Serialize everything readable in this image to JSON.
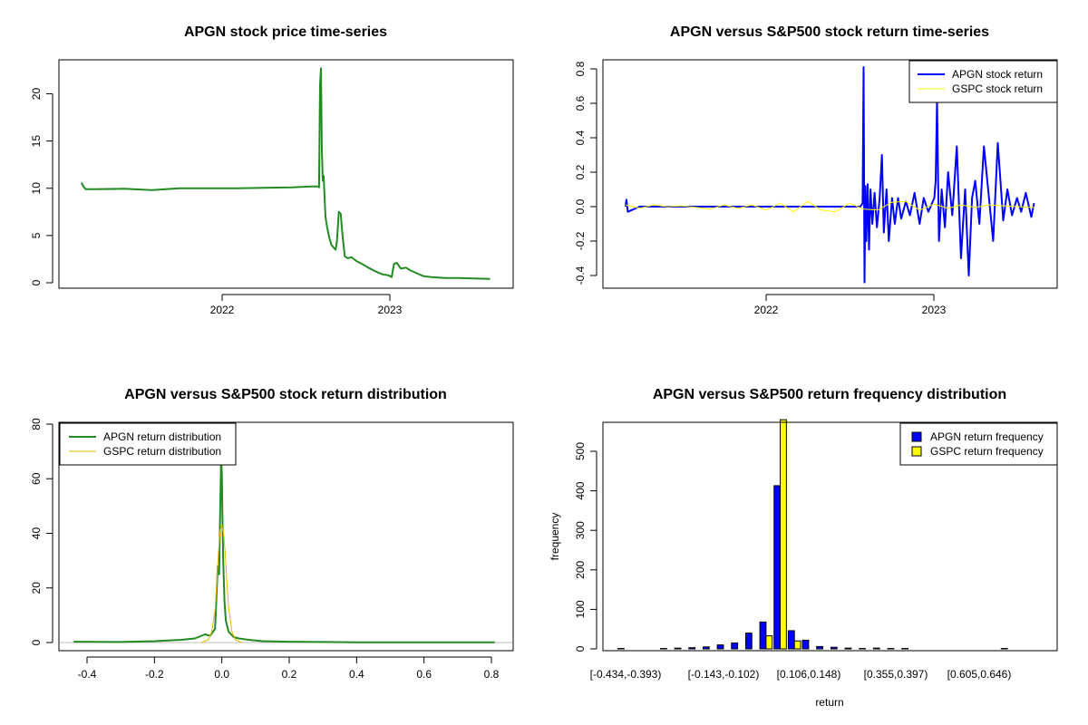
{
  "chart_data": [
    {
      "type": "line",
      "title": "APGN stock price time-series",
      "xlabel": "",
      "ylabel": "",
      "x_tick_labels": [
        "2022",
        "2023"
      ],
      "y_ticks": [
        0,
        5,
        10,
        15,
        20
      ],
      "ylim": [
        0,
        23
      ],
      "grid": false,
      "color": "#228B22",
      "series": [
        {
          "x": [
            "2021-03-01",
            "2021-03-05",
            "2021-03-10",
            "2021-04-01",
            "2021-06-01",
            "2021-08-01",
            "2021-10-01",
            "2021-12-01",
            "2022-02-01",
            "2022-04-01",
            "2022-06-01",
            "2022-07-15",
            "2022-07-28",
            "2022-07-31",
            "2022-08-02",
            "2022-08-04",
            "2022-08-06",
            "2022-08-08",
            "2022-08-10",
            "2022-08-12",
            "2022-08-14",
            "2022-08-17",
            "2022-08-22",
            "2022-08-27",
            "2022-09-01",
            "2022-09-05",
            "2022-09-08",
            "2022-09-12",
            "2022-09-16",
            "2022-09-20",
            "2022-09-25",
            "2022-10-01",
            "2022-10-10",
            "2022-10-20",
            "2022-11-01",
            "2022-11-15",
            "2022-12-01",
            "2022-12-15",
            "2022-12-28",
            "2023-01-05",
            "2023-01-10",
            "2023-01-16",
            "2023-01-25",
            "2023-02-05",
            "2023-02-15",
            "2023-03-01",
            "2023-03-15",
            "2023-04-01",
            "2023-05-01",
            "2023-06-01",
            "2023-07-01",
            "2023-08-07"
          ],
          "y": [
            10.6,
            10.2,
            9.9,
            9.9,
            9.95,
            9.8,
            10.0,
            10.0,
            10.0,
            10.05,
            10.1,
            10.2,
            10.2,
            10.1,
            21.0,
            22.7,
            14.0,
            10.8,
            11.3,
            9.0,
            7.0,
            6.0,
            4.8,
            4.0,
            3.7,
            3.5,
            4.5,
            7.5,
            7.3,
            5.0,
            2.8,
            2.6,
            2.7,
            2.3,
            2.0,
            1.6,
            1.2,
            0.9,
            0.8,
            0.6,
            2.0,
            2.1,
            1.5,
            1.6,
            1.3,
            1.0,
            0.7,
            0.6,
            0.5,
            0.5,
            0.45,
            0.4
          ]
        }
      ]
    },
    {
      "type": "line",
      "title": "APGN versus S&P500 stock return time-series",
      "xlabel": "",
      "ylabel": "",
      "x_tick_labels": [
        "2022",
        "2023"
      ],
      "y_tick_labels": [
        "-0.4",
        "-0.2",
        "0.0",
        "0.2",
        "0.4",
        "0.6",
        "0.8"
      ],
      "ylim": [
        -0.45,
        0.82
      ],
      "grid": false,
      "legend": "top-right",
      "series": [
        {
          "name": "APGN stock return",
          "color": "#0000FF",
          "x": [
            "2021-03-01",
            "2021-03-03",
            "2021-03-06",
            "2021-04-01",
            "2021-06-01",
            "2021-08-01",
            "2021-10-01",
            "2021-12-01",
            "2022-02-01",
            "2022-04-01",
            "2022-06-01",
            "2022-07-15",
            "2022-07-25",
            "2022-07-30",
            "2022-08-01",
            "2022-08-03",
            "2022-08-05",
            "2022-08-07",
            "2022-08-10",
            "2022-08-13",
            "2022-08-16",
            "2022-08-20",
            "2022-08-25",
            "2022-08-30",
            "2022-09-05",
            "2022-09-10",
            "2022-09-14",
            "2022-09-20",
            "2022-09-25",
            "2022-10-02",
            "2022-10-08",
            "2022-10-15",
            "2022-10-22",
            "2022-11-01",
            "2022-11-10",
            "2022-11-20",
            "2022-12-01",
            "2022-12-10",
            "2022-12-20",
            "2023-01-02",
            "2023-01-05",
            "2023-01-08",
            "2023-01-12",
            "2023-01-18",
            "2023-01-25",
            "2023-02-01",
            "2023-02-10",
            "2023-02-20",
            "2023-03-01",
            "2023-03-10",
            "2023-03-18",
            "2023-03-25",
            "2023-04-01",
            "2023-04-10",
            "2023-04-20",
            "2023-05-01",
            "2023-05-10",
            "2023-05-20",
            "2023-06-01",
            "2023-06-10",
            "2023-06-20",
            "2023-07-01",
            "2023-07-10",
            "2023-07-20",
            "2023-08-01",
            "2023-08-07"
          ],
          "y": [
            0.0,
            0.04,
            -0.03,
            0.0,
            0.0,
            0.0,
            0.0,
            0.0,
            0.0,
            0.0,
            0.0,
            0.0,
            0.0,
            0.02,
            0.81,
            -0.44,
            0.12,
            -0.2,
            0.13,
            -0.25,
            0.1,
            -0.1,
            0.08,
            -0.12,
            0.05,
            0.3,
            -0.15,
            0.1,
            -0.2,
            0.05,
            -0.1,
            0.05,
            -0.07,
            0.03,
            -0.05,
            0.08,
            -0.1,
            0.05,
            -0.03,
            0.05,
            0.15,
            0.62,
            -0.2,
            0.1,
            -0.12,
            0.2,
            -0.05,
            0.35,
            -0.3,
            0.1,
            -0.4,
            0.05,
            0.15,
            -0.1,
            0.35,
            0.05,
            -0.2,
            0.37,
            -0.08,
            0.1,
            -0.05,
            0.05,
            -0.03,
            0.08,
            -0.06,
            0.02
          ]
        },
        {
          "name": "GSPC stock return",
          "color": "#FFFF00",
          "x": [
            "2021-03-01",
            "2021-04-01",
            "2021-05-01",
            "2021-06-01",
            "2021-07-01",
            "2021-08-01",
            "2021-09-01",
            "2021-10-01",
            "2021-11-01",
            "2021-12-01",
            "2022-01-01",
            "2022-02-01",
            "2022-03-01",
            "2022-04-01",
            "2022-05-01",
            "2022-06-01",
            "2022-07-01",
            "2022-08-01",
            "2022-09-01",
            "2022-10-01",
            "2022-11-01",
            "2022-12-01",
            "2023-01-01",
            "2023-02-01",
            "2023-03-01",
            "2023-04-01",
            "2023-05-01",
            "2023-06-01",
            "2023-07-01",
            "2023-08-07"
          ],
          "y": [
            0.01,
            -0.01,
            0.01,
            0.0,
            0.005,
            -0.005,
            -0.015,
            0.01,
            -0.01,
            0.01,
            -0.02,
            0.02,
            -0.03,
            0.03,
            -0.02,
            -0.03,
            0.02,
            -0.015,
            -0.02,
            0.025,
            0.03,
            -0.02,
            0.015,
            -0.01,
            0.01,
            -0.005,
            0.01,
            0.005,
            0.0,
            -0.005
          ]
        }
      ]
    },
    {
      "type": "line",
      "title": "APGN versus S&P500 stock return distribution",
      "xlabel": "",
      "ylabel": "",
      "x_tick_labels": [
        "-0.4",
        "-0.2",
        "0.0",
        "0.2",
        "0.4",
        "0.6",
        "0.8"
      ],
      "y_ticks": [
        0,
        20,
        40,
        60,
        80
      ],
      "xlim": [
        -0.47,
        0.84
      ],
      "ylim": [
        -2,
        80
      ],
      "legend": "top-left",
      "series": [
        {
          "name": "APGN return distribution",
          "color": "#228B22",
          "x": [
            -0.44,
            -0.3,
            -0.2,
            -0.12,
            -0.08,
            -0.05,
            -0.035,
            -0.02,
            -0.012,
            -0.008,
            -0.004,
            -0.002,
            0.0,
            0.002,
            0.004,
            0.008,
            0.012,
            0.02,
            0.035,
            0.05,
            0.08,
            0.12,
            0.2,
            0.3,
            0.4,
            0.5,
            0.6,
            0.7,
            0.81
          ],
          "y": [
            0.3,
            0.2,
            0.5,
            1.0,
            1.5,
            3.0,
            2.5,
            5.0,
            28.0,
            25.0,
            55.0,
            67.0,
            62.0,
            45.0,
            30.0,
            15.0,
            8.0,
            4.0,
            2.0,
            1.5,
            1.0,
            0.5,
            0.3,
            0.2,
            0.1,
            0.1,
            0.1,
            0.1,
            0.1
          ]
        },
        {
          "name": "GSPC return distribution",
          "color": "#E6B800",
          "x": [
            -0.06,
            -0.04,
            -0.03,
            -0.02,
            -0.015,
            -0.01,
            -0.005,
            0.0,
            0.005,
            0.01,
            0.015,
            0.02,
            0.03,
            0.04,
            0.06
          ],
          "y": [
            0.0,
            1.0,
            4.0,
            12.0,
            22.0,
            33.0,
            41.0,
            43.0,
            40.0,
            33.0,
            22.0,
            13.0,
            4.0,
            1.0,
            0.0
          ]
        }
      ]
    },
    {
      "type": "bar",
      "title": "APGN versus S&P500 return frequency distribution",
      "xlabel": "return",
      "ylabel": "frequency",
      "y_ticks": [
        0,
        100,
        200,
        300,
        400,
        500
      ],
      "ylim": [
        0,
        580
      ],
      "legend": "top-right",
      "x_tick_labels": [
        "[-0.434,-0.393)",
        "[-0.143,-0.102)",
        "[0.106,0.148)",
        "[0.355,0.397)",
        "[0.605,0.646)"
      ],
      "series": [
        {
          "name": "APGN return frequency",
          "color": "#0000FF",
          "values": [
            1,
            0,
            0,
            1,
            2,
            3,
            5,
            10,
            15,
            40,
            68,
            413,
            46,
            22,
            6,
            4,
            2,
            1,
            2,
            1,
            1,
            0,
            0,
            0,
            0,
            0,
            0,
            1,
            0,
            0
          ]
        },
        {
          "name": "GSPC return frequency",
          "color": "#FFFF00",
          "values": [
            0,
            0,
            0,
            0,
            0,
            0,
            0,
            0,
            0,
            0,
            33,
            580,
            20,
            0,
            0,
            0,
            0,
            0,
            0,
            0,
            0,
            0,
            0,
            0,
            0,
            0,
            0,
            0,
            0,
            0
          ]
        }
      ]
    }
  ]
}
